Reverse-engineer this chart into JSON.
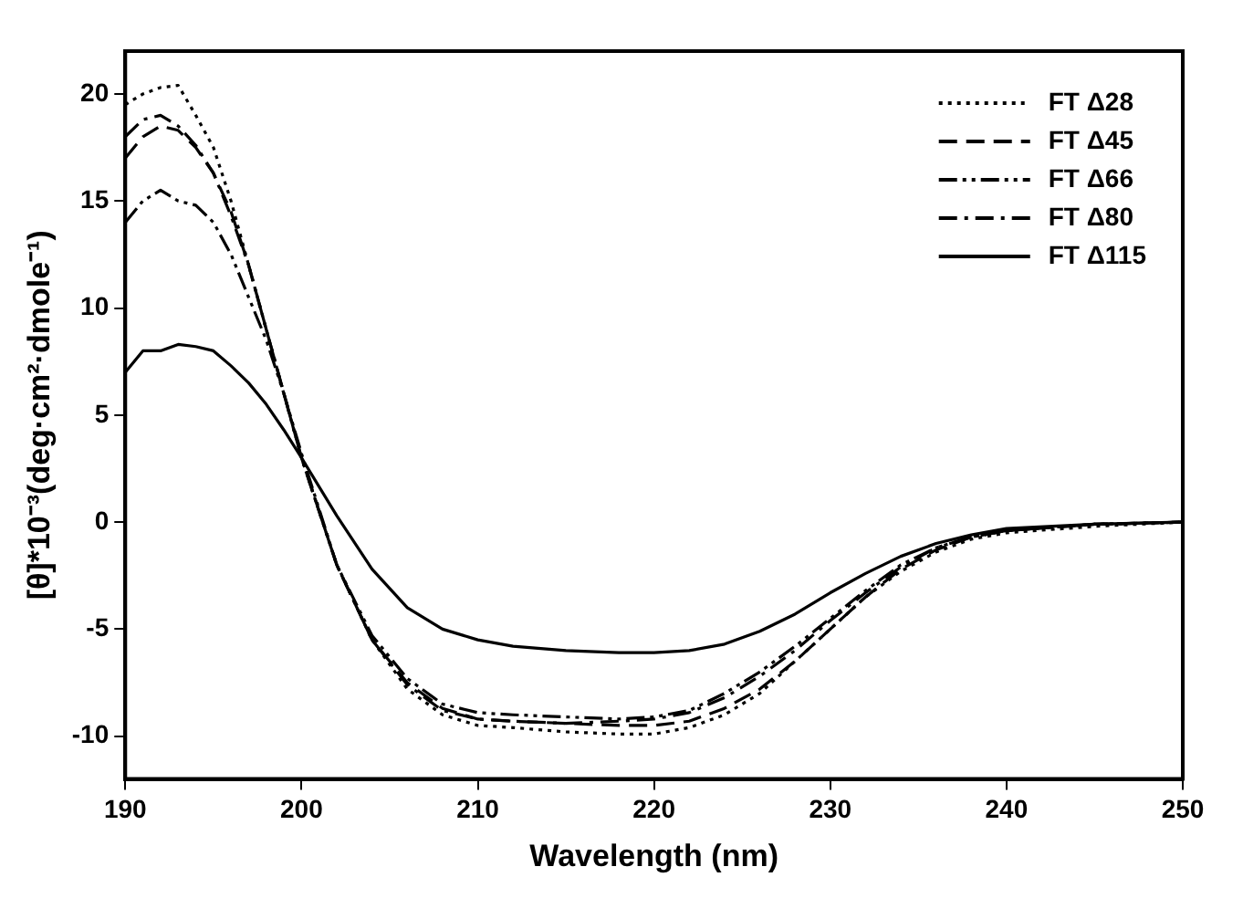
{
  "chart_data": {
    "type": "line",
    "xlabel": "Wavelength (nm)",
    "ylabel": "[θ]*10⁻³(deg·cm²·dmole⁻¹)",
    "x": [
      190,
      191,
      192,
      193,
      194,
      195,
      196,
      197,
      198,
      199,
      200,
      202,
      204,
      206,
      208,
      210,
      212,
      215,
      218,
      220,
      222,
      224,
      226,
      228,
      230,
      232,
      234,
      236,
      238,
      240,
      245,
      250
    ],
    "xlim": [
      190,
      250
    ],
    "xticks": [
      190,
      200,
      210,
      220,
      230,
      240,
      250
    ],
    "ylim": [
      -12,
      22
    ],
    "yticks": [
      -10,
      -5,
      0,
      5,
      10,
      15,
      20
    ],
    "grid": false,
    "legend": "top right",
    "marker": "none",
    "series": [
      {
        "name": "FT Δ28",
        "color": "#000000",
        "line_style": "dotted",
        "values": [
          19.5,
          20,
          20.3,
          20.4,
          19,
          17.5,
          15,
          12,
          9,
          6,
          3,
          -2,
          -5.5,
          -7.8,
          -9,
          -9.5,
          -9.6,
          -9.8,
          -9.9,
          -9.9,
          -9.6,
          -9,
          -8,
          -6.5,
          -5,
          -3.5,
          -2.3,
          -1.4,
          -0.8,
          -0.5,
          -0.2,
          0
        ]
      },
      {
        "name": "FT Δ45",
        "color": "#000000",
        "line_style": "dashed",
        "values": [
          17,
          18,
          18.5,
          18.3,
          17.5,
          16.3,
          14.5,
          12,
          9,
          6,
          3,
          -2,
          -5.5,
          -7.5,
          -8.7,
          -9.2,
          -9.3,
          -9.4,
          -9.5,
          -9.5,
          -9.3,
          -8.7,
          -7.8,
          -6.5,
          -5,
          -3.5,
          -2.2,
          -1.3,
          -0.7,
          -0.4,
          -0.1,
          0
        ]
      },
      {
        "name": "FT Δ66",
        "color": "#000000",
        "line_style": "dashdotdot",
        "values": [
          14,
          15,
          15.5,
          15,
          14.8,
          14,
          12.5,
          10.5,
          8.5,
          6,
          3.2,
          -2,
          -5.3,
          -7.3,
          -8.5,
          -8.9,
          -9,
          -9.1,
          -9.2,
          -9.1,
          -8.8,
          -8,
          -7,
          -5.8,
          -4.5,
          -3.2,
          -2,
          -1.2,
          -0.7,
          -0.4,
          -0.1,
          0
        ]
      },
      {
        "name": "FT Δ80",
        "color": "#000000",
        "line_style": "dashdot",
        "values": [
          18,
          18.8,
          19,
          18.5,
          17.6,
          16.3,
          14.3,
          12,
          9,
          6,
          3,
          -2,
          -5.5,
          -7.6,
          -8.8,
          -9.2,
          -9.3,
          -9.4,
          -9.3,
          -9.2,
          -8.9,
          -8.2,
          -7.2,
          -6,
          -4.6,
          -3.3,
          -2.1,
          -1.2,
          -0.7,
          -0.4,
          -0.1,
          0
        ]
      },
      {
        "name": "FT Δ115",
        "color": "#000000",
        "line_style": "solid",
        "values": [
          7,
          8,
          8,
          8.3,
          8.2,
          8,
          7.3,
          6.5,
          5.5,
          4.3,
          3,
          0.3,
          -2.2,
          -4,
          -5,
          -5.5,
          -5.8,
          -6,
          -6.1,
          -6.1,
          -6,
          -5.7,
          -5.1,
          -4.3,
          -3.3,
          -2.4,
          -1.6,
          -1,
          -0.6,
          -0.3,
          -0.1,
          0
        ]
      }
    ]
  }
}
